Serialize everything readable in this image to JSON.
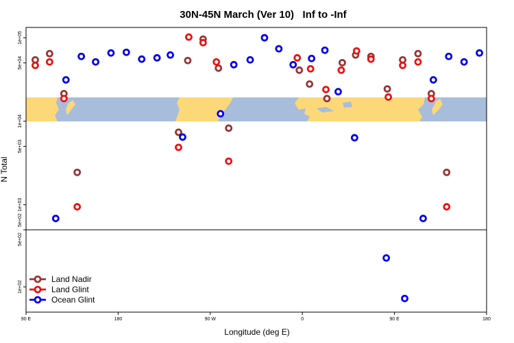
{
  "chart_data": {
    "type": "scatter",
    "title": "30N-45N March (Ver 10)   Inf to -Inf",
    "xlabel": "Longitude (deg E)",
    "ylabel": "N Total",
    "log_scale": true,
    "legend": "bottom-left",
    "xlim": [
      90,
      540
    ],
    "xticks": [
      {
        "value": 90,
        "label": "90 E"
      },
      180,
      {
        "value": 270,
        "label": "90 W"
      },
      {
        "value": 360,
        "label": "0"
      },
      {
        "value": 450,
        "label": "90 E"
      },
      {
        "value": 540,
        "label": "180"
      }
    ],
    "panels": [
      {
        "ylim": [
          500,
          133000
        ],
        "yticks": [
          {
            "value": 100000,
            "label": "1e+05"
          },
          {
            "value": 50000,
            "label": "5e+04"
          },
          {
            "value": 10000,
            "label": "1e+04"
          },
          {
            "value": 5000,
            "label": "5e+03"
          },
          {
            "value": 1000,
            "label": "1e+03"
          },
          {
            "value": 500,
            "label": "5e+02"
          }
        ]
      },
      {
        "ylim": [
          49,
          500
        ],
        "yticks": [
          {
            "value": 500,
            "label": "5e+02"
          },
          {
            "value": 100,
            "label": "1e+02"
          }
        ]
      }
    ],
    "series": [
      {
        "name": "Land Nadir",
        "color": "#993333",
        "x": [
          99,
          113,
          127,
          140,
          239,
          248,
          263,
          278,
          288,
          357,
          367,
          384,
          399,
          412,
          427,
          443,
          458,
          473,
          486,
          501
        ],
        "values": [
          54400,
          64600,
          21400,
          2440,
          7380,
          53400,
          96300,
          43300,
          8260,
          40900,
          27900,
          18700,
          50300,
          62200,
          59800,
          24400,
          54400,
          64600,
          21400,
          2440
        ]
      },
      {
        "name": "Land Glint",
        "color": "#ee1111",
        "x": [
          99,
          113,
          127,
          140,
          239,
          249,
          263,
          276,
          288,
          355,
          368,
          383,
          398,
          413,
          427,
          444,
          458,
          473,
          486,
          501
        ],
        "values": [
          46700,
          51400,
          18700,
          944,
          4860,
          102000,
          87400,
          51400,
          3320,
          57500,
          42500,
          24000,
          40900,
          69600,
          55500,
          19500,
          46700,
          51400,
          18700,
          944
        ]
      },
      {
        "name": "Ocean Glint",
        "color": "#0000ee",
        "x": [
          119,
          129,
          144,
          158,
          173,
          188,
          203,
          218,
          231,
          243,
          280,
          293,
          309,
          323,
          337,
          351,
          369,
          382,
          395,
          411,
          442,
          460,
          478,
          488,
          503,
          518,
          533
        ],
        "values": [
          684,
          31300,
          59800,
          51400,
          65800,
          67000,
          55500,
          57500,
          62200,
          6460,
          12300,
          47600,
          54400,
          100000,
          73800,
          47600,
          56500,
          70900,
          22600,
          6340,
          226,
          72,
          684,
          31300,
          59800,
          51400,
          65800
        ]
      }
    ]
  }
}
